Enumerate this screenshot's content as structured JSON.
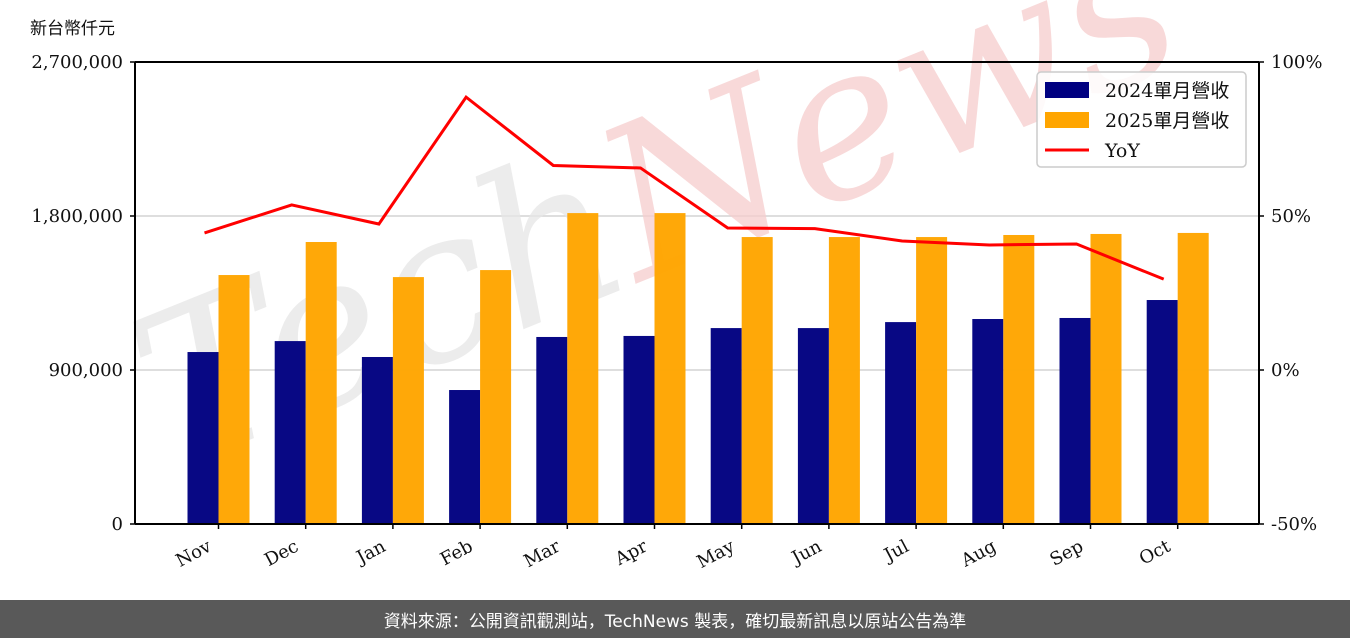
{
  "unit_label": "新台幣仟元",
  "footer": {
    "source_text": "資料來源：公開資訊觀測站，TechNews 製表，確切最新訊息以原站公告為準"
  },
  "watermark": "TechNews",
  "colors": {
    "series_2024": "#000080",
    "series_2025": "#FFA500",
    "yoy": "#FF0000",
    "grid": "#d3d3d3",
    "footer_bg": "#595959"
  },
  "chart_data": {
    "type": "bar",
    "title": "",
    "xlabel": "",
    "ylabel": "新台幣仟元",
    "y2label": "YoY",
    "categories": [
      "Nov",
      "Dec",
      "Jan",
      "Feb",
      "Mar",
      "Apr",
      "May",
      "Jun",
      "Jul",
      "Aug",
      "Sep",
      "Oct"
    ],
    "series": [
      {
        "name": "2024單月營收",
        "type": "bar",
        "axis": "left",
        "values": [
          1005000,
          1069000,
          976000,
          783000,
          1093000,
          1099000,
          1145000,
          1145000,
          1180000,
          1198000,
          1204000,
          1309000
        ]
      },
      {
        "name": "2025單月營收",
        "type": "bar",
        "axis": "left",
        "values": [
          1455000,
          1648000,
          1443000,
          1484000,
          1817000,
          1817000,
          1677000,
          1677000,
          1677000,
          1689000,
          1695000,
          1701000
        ]
      },
      {
        "name": "YoY",
        "type": "line",
        "axis": "right",
        "values": [
          44.5,
          53.6,
          47.4,
          88.6,
          66.4,
          65.6,
          46.1,
          45.9,
          41.9,
          40.6,
          40.9,
          29.5
        ]
      }
    ],
    "ylim": [
      0,
      2700000
    ],
    "y2lim": [
      -50,
      100
    ],
    "yticks": [
      0,
      900000,
      1800000,
      2700000
    ],
    "ytick_labels": [
      "0",
      "900,000",
      "1,800,000",
      "2,700,000"
    ],
    "y2ticks": [
      -50,
      0,
      50,
      100
    ],
    "y2tick_labels": [
      "-50%",
      "0%",
      "50%",
      "100%"
    ],
    "grid": "horizontal",
    "legend_position": "upper right",
    "legend": [
      "2024單月營收",
      "2025單月營收",
      "YoY"
    ]
  }
}
